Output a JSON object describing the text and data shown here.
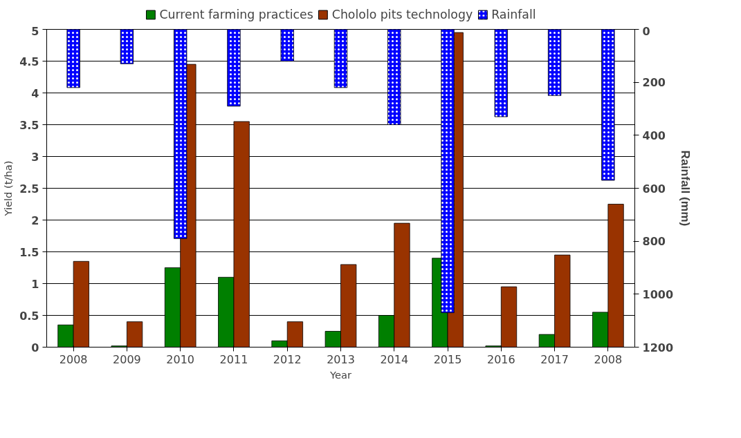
{
  "chart_data": {
    "type": "bar",
    "xlabel": "Year",
    "ylabel": "Yield (t/ha)",
    "y2label": "Rainfall (mm)",
    "categories": [
      "2008",
      "2009",
      "2010",
      "2011",
      "2012",
      "2013",
      "2014",
      "2015",
      "2016",
      "2017",
      "2008"
    ],
    "series": [
      {
        "name": "Current farming practices",
        "color": "#007f00",
        "values": [
          0.35,
          0.02,
          1.25,
          1.1,
          0.1,
          0.25,
          0.5,
          1.4,
          0.02,
          0.2,
          0.55
        ]
      },
      {
        "name": "Chololo pits technology",
        "color": "#993300",
        "values": [
          1.35,
          0.4,
          4.45,
          3.55,
          0.4,
          1.3,
          1.95,
          4.95,
          0.95,
          1.45,
          2.25
        ]
      },
      {
        "name": "Rainfall",
        "color": "#0000ff",
        "axis": "y2",
        "values": [
          220,
          130,
          790,
          290,
          120,
          220,
          360,
          1070,
          330,
          250,
          570
        ]
      }
    ],
    "ylim": [
      0,
      5
    ],
    "yticks": [
      0,
      0.5,
      1,
      1.5,
      2,
      2.5,
      3,
      3.5,
      4,
      4.5,
      5
    ],
    "y2lim": [
      1200,
      0
    ],
    "y2ticks": [
      0,
      200,
      400,
      600,
      800,
      1000,
      1200
    ],
    "grid": "y",
    "legend": "top"
  }
}
